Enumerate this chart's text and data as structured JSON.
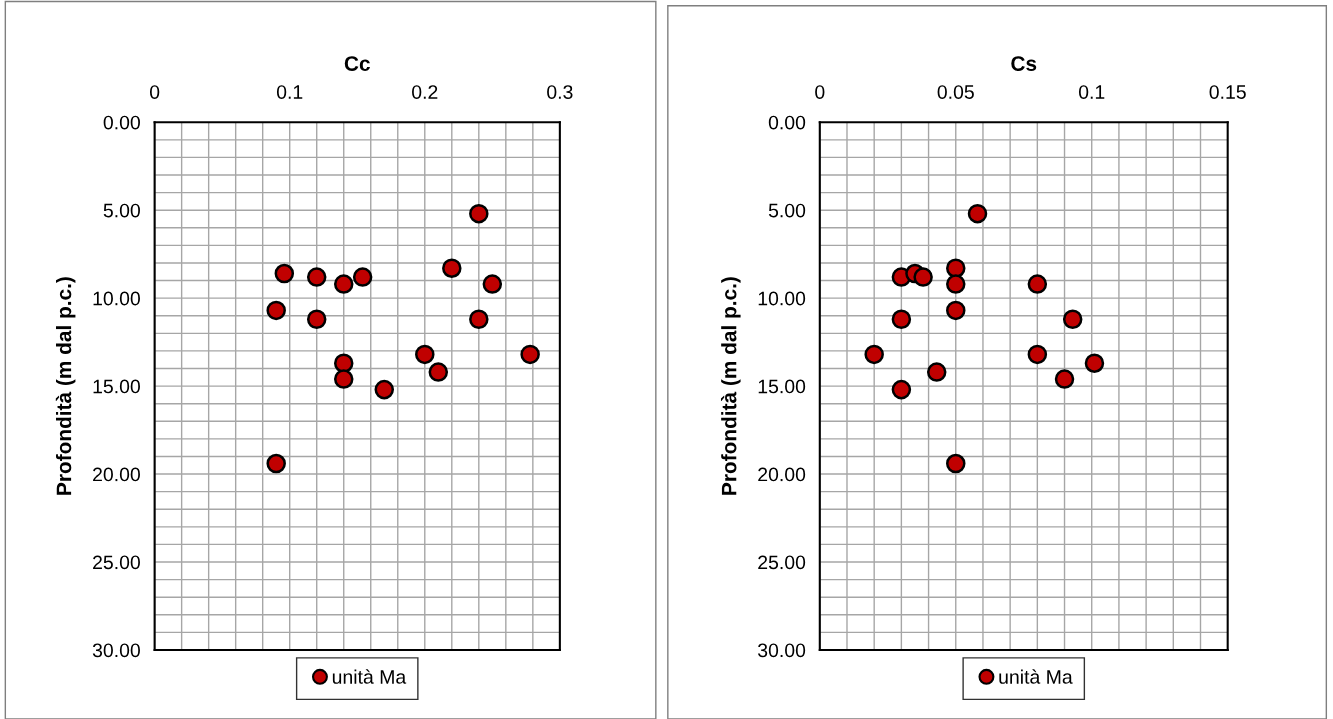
{
  "chart_data": [
    {
      "type": "scatter",
      "xlabel": "Cc",
      "ylabel": "Profondità (m dal p.c.)",
      "xlim": [
        0,
        0.3
      ],
      "xticks": [
        0,
        0.1,
        0.2,
        0.3
      ],
      "ylim": [
        30,
        0
      ],
      "yticks": [
        {
          "value": 0,
          "label": "0.00"
        },
        {
          "value": 5,
          "label": "5.00"
        },
        {
          "value": 10,
          "label": "10.00"
        },
        {
          "value": 15,
          "label": "15.00"
        },
        {
          "value": 20,
          "label": "20.00"
        },
        {
          "value": 25,
          "label": "25.00"
        },
        {
          "value": 30,
          "label": "30.00"
        }
      ],
      "grid": true,
      "legend": "bottom",
      "marker": "circle",
      "series": [
        {
          "name": "unità Ma",
          "color": "#c00000",
          "x": [
            0.24,
            0.22,
            0.25,
            0.24,
            0.096,
            0.12,
            0.14,
            0.154,
            0.09,
            0.12,
            0.14,
            0.14,
            0.17,
            0.2,
            0.21,
            0.278,
            0.09
          ],
          "values": [
            5.2,
            8.3,
            9.2,
            11.2,
            8.6,
            8.8,
            9.2,
            8.8,
            10.7,
            11.2,
            13.7,
            14.6,
            15.2,
            13.2,
            14.2,
            13.2,
            19.4
          ]
        }
      ]
    },
    {
      "type": "scatter",
      "xlabel": "Cs",
      "ylabel": "Profondità (m dal p.c.)",
      "xlim": [
        0,
        0.15
      ],
      "xticks": [
        0,
        0.05,
        0.1,
        0.15
      ],
      "ylim": [
        30,
        0
      ],
      "yticks": [
        {
          "value": 0,
          "label": "0.00"
        },
        {
          "value": 5,
          "label": "5.00"
        },
        {
          "value": 10,
          "label": "10.00"
        },
        {
          "value": 15,
          "label": "15.00"
        },
        {
          "value": 20,
          "label": "20.00"
        },
        {
          "value": 25,
          "label": "25.00"
        },
        {
          "value": 30,
          "label": "30.00"
        }
      ],
      "grid": true,
      "legend": "bottom",
      "marker": "circle",
      "series": [
        {
          "name": "unità Ma",
          "color": "#c00000",
          "x": [
            0.058,
            0.03,
            0.035,
            0.038,
            0.05,
            0.05,
            0.08,
            0.05,
            0.03,
            0.093,
            0.02,
            0.08,
            0.101,
            0.043,
            0.09,
            0.03,
            0.05
          ],
          "values": [
            5.2,
            8.8,
            8.6,
            8.8,
            8.3,
            9.2,
            9.2,
            10.7,
            11.2,
            11.2,
            13.2,
            13.2,
            13.7,
            14.2,
            14.6,
            15.2,
            19.4
          ]
        }
      ]
    }
  ]
}
